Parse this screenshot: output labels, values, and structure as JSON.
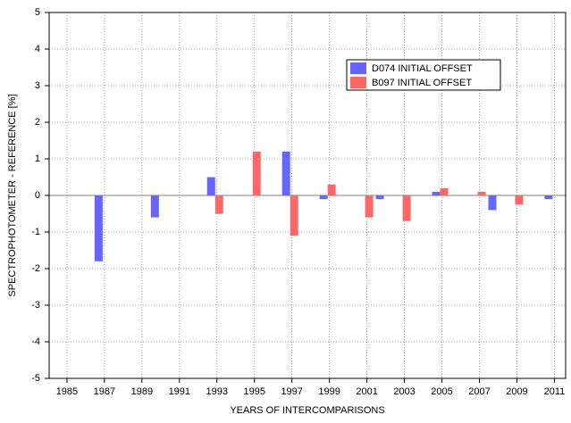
{
  "chart_data": {
    "type": "bar",
    "xlabel": "YEARS OF INTERCOMPARISONS",
    "ylabel": "SPECTROPHOTOMETER - REFERENCE [%]",
    "series": [
      {
        "name": "D074 INITIAL OFFSET",
        "color": "#6666ff",
        "x": [
          1987,
          1990,
          1993,
          1997,
          1999,
          2002,
          2005,
          2008,
          2011
        ],
        "values": [
          -1.8,
          -0.6,
          0.5,
          1.2,
          -0.1,
          -0.1,
          0.1,
          -0.4,
          -0.1
        ]
      },
      {
        "name": "B097 INITIAL OFFSET",
        "color": "#ff6666",
        "x": [
          1993,
          1995,
          1997,
          1999,
          2001,
          2003,
          2005,
          2007,
          2009
        ],
        "values": [
          -0.5,
          1.2,
          -1.1,
          0.3,
          -0.6,
          -0.7,
          0.2,
          0.1,
          -0.25
        ]
      }
    ],
    "xlim": [
      1984.05,
      2011.6
    ],
    "xticks": [
      1985,
      1987,
      1989,
      1991,
      1993,
      1995,
      1997,
      1999,
      2001,
      2003,
      2005,
      2007,
      2009,
      2011
    ],
    "ylim": [
      -5,
      5
    ],
    "yticks": [
      -5,
      -4,
      -3,
      -2,
      -1,
      0,
      1,
      2,
      3,
      4,
      5
    ],
    "grid": true,
    "legend": "upper right"
  }
}
